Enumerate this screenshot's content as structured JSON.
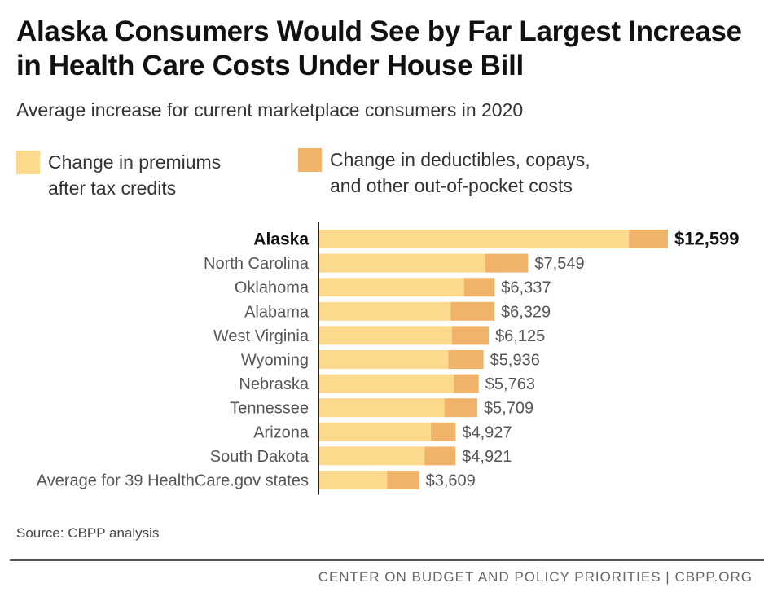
{
  "title": "Alaska Consumers Would See by Far Largest Increase in Health Care Costs Under House Bill",
  "subtitle": "Average increase for current marketplace consumers in 2020",
  "legend": [
    {
      "label": "Change in premiums\nafter tax credits",
      "color": "#FDD98E"
    },
    {
      "label": "Change in deductibles, copays,\nand other out-of-pocket costs",
      "color": "#F1B36A"
    }
  ],
  "chart_data": {
    "type": "bar",
    "orientation": "horizontal",
    "stacked": true,
    "categories": [
      "Alaska",
      "North Carolina",
      "Oklahoma",
      "Alabama",
      "West Virginia",
      "Wyoming",
      "Nebraska",
      "Tennessee",
      "Arizona",
      "South Dakota",
      "Average for 39 HealthCare.gov states"
    ],
    "highlight": "Alaska",
    "series": [
      {
        "name": "Change in premiums after tax credits",
        "color": "#FDD98E",
        "values": [
          11190,
          6000,
          5240,
          4750,
          4790,
          4660,
          4860,
          4520,
          4030,
          3810,
          2450
        ]
      },
      {
        "name": "Change in deductibles, copays, and other out-of-pocket costs",
        "color": "#F1B36A",
        "values": [
          1409,
          1549,
          1097,
          1579,
          1335,
          1276,
          903,
          1189,
          897,
          1111,
          1159
        ]
      }
    ],
    "totals": [
      12599,
      7549,
      6337,
      6329,
      6125,
      5936,
      5763,
      5709,
      4927,
      4921,
      3609
    ],
    "total_labels": [
      "$12,599",
      "$7,549",
      "$6,337",
      "$6,329",
      "$6,125",
      "$5,936",
      "$5,763",
      "$5,709",
      "$4,927",
      "$4,921",
      "$3,609"
    ],
    "xlim": [
      0,
      12599
    ],
    "xlabel": "",
    "ylabel": "",
    "grid": false
  },
  "source": "Source: CBPP analysis",
  "footer": "CENTER ON BUDGET AND POLICY PRIORITIES | CBPP.ORG"
}
